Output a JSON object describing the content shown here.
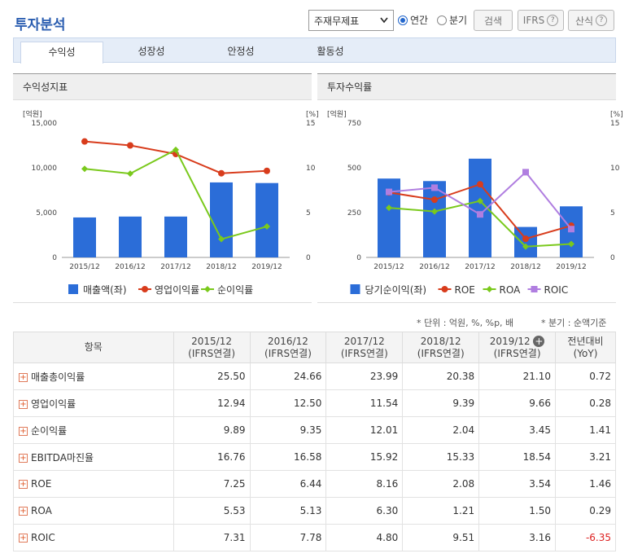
{
  "page_title": "투자분석",
  "controls": {
    "select_value": "주재무제표",
    "radio_annual": "연간",
    "radio_quarter": "분기",
    "search": "검색",
    "ifrs": "IFRS",
    "formula": "산식"
  },
  "tabs": [
    "수익성",
    "성장성",
    "안정성",
    "활동성"
  ],
  "left_panel_title": "수익성지표",
  "right_panel_title": "투자수익률",
  "unit_note": "* 단위 : 억원, %, %p, 배",
  "quarter_note": "* 분기 : 순액기준",
  "chart_data": [
    {
      "type": "bar",
      "categories": [
        "2015/12",
        "2016/12",
        "2017/12",
        "2018/12",
        "2019/12"
      ],
      "left_unit": "[억원]",
      "right_unit": "[%]",
      "ylim": [
        0,
        15000
      ],
      "y2lim": [
        0,
        15
      ],
      "yticks": [
        "15,000",
        "10,000",
        "5,000",
        "0"
      ],
      "y2ticks": [
        "15",
        "10",
        "5",
        "0"
      ],
      "bars": {
        "name": "매출액(좌)",
        "color": "#2b6dd8",
        "values": [
          4460,
          4560,
          4560,
          8370,
          8300
        ]
      },
      "lines": [
        {
          "name": "영업이익률",
          "color": "#d83c1c",
          "values": [
            12.94,
            12.5,
            11.54,
            9.39,
            9.66
          ]
        },
        {
          "name": "순이익률",
          "color": "#7ac91c",
          "values": [
            9.89,
            9.35,
            12.01,
            2.04,
            3.45
          ]
        }
      ]
    },
    {
      "type": "bar",
      "categories": [
        "2015/12",
        "2016/12",
        "2017/12",
        "2018/12",
        "2019/12"
      ],
      "left_unit": "[억원]",
      "right_unit": "[%]",
      "ylim": [
        0,
        750
      ],
      "y2lim": [
        0,
        15
      ],
      "yticks": [
        "750",
        "500",
        "250",
        "0"
      ],
      "y2ticks": [
        "15",
        "10",
        "5",
        "0"
      ],
      "bars": {
        "name": "당기순이익(좌)",
        "color": "#2b6dd8",
        "values": [
          440,
          426,
          551,
          170,
          285
        ]
      },
      "lines": [
        {
          "name": "ROE",
          "color": "#d83c1c",
          "values": [
            7.25,
            6.44,
            8.16,
            2.08,
            3.54
          ]
        },
        {
          "name": "ROA",
          "color": "#7ac91c",
          "values": [
            5.53,
            5.13,
            6.3,
            1.21,
            1.5
          ]
        },
        {
          "name": "ROIC",
          "color": "#b07ee0",
          "values": [
            7.31,
            7.78,
            4.8,
            9.51,
            3.16
          ]
        }
      ]
    }
  ],
  "table": {
    "header_item": "항목",
    "columns": [
      {
        "period": "2015/12",
        "basis": "(IFRS연결)"
      },
      {
        "period": "2016/12",
        "basis": "(IFRS연결)"
      },
      {
        "period": "2017/12",
        "basis": "(IFRS연결)"
      },
      {
        "period": "2018/12",
        "basis": "(IFRS연결)"
      },
      {
        "period": "2019/12",
        "basis": "(IFRS연결)"
      }
    ],
    "yoy_label": "전년대비",
    "yoy_sub": "(YoY)",
    "rows": [
      {
        "name": "매출총이익률",
        "values": [
          "25.50",
          "24.66",
          "23.99",
          "20.38",
          "21.10"
        ],
        "yoy": "0.72"
      },
      {
        "name": "영업이익률",
        "values": [
          "12.94",
          "12.50",
          "11.54",
          "9.39",
          "9.66"
        ],
        "yoy": "0.28"
      },
      {
        "name": "순이익률",
        "values": [
          "9.89",
          "9.35",
          "12.01",
          "2.04",
          "3.45"
        ],
        "yoy": "1.41"
      },
      {
        "name": "EBITDA마진율",
        "values": [
          "16.76",
          "16.58",
          "15.92",
          "15.33",
          "18.54"
        ],
        "yoy": "3.21"
      },
      {
        "name": "ROE",
        "values": [
          "7.25",
          "6.44",
          "8.16",
          "2.08",
          "3.54"
        ],
        "yoy": "1.46"
      },
      {
        "name": "ROA",
        "values": [
          "5.53",
          "5.13",
          "6.30",
          "1.21",
          "1.50"
        ],
        "yoy": "0.29"
      },
      {
        "name": "ROIC",
        "values": [
          "7.31",
          "7.78",
          "4.80",
          "9.51",
          "3.16"
        ],
        "yoy": "-6.35"
      }
    ]
  }
}
